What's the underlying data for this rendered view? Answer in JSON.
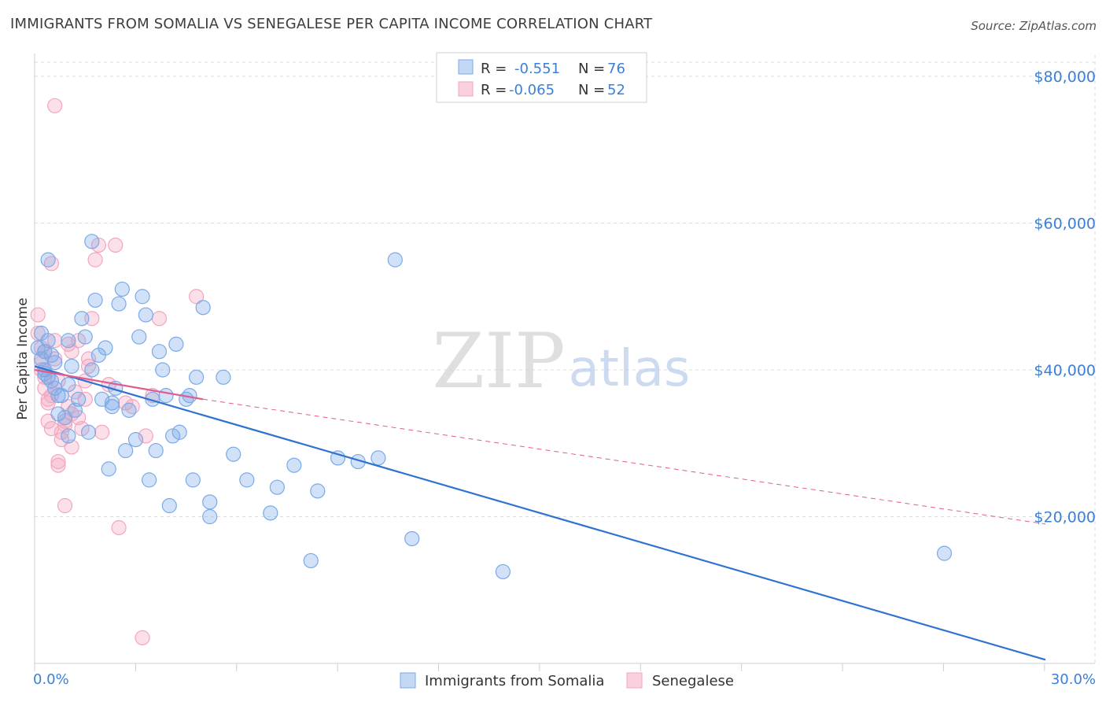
{
  "title": "IMMIGRANTS FROM SOMALIA VS SENEGALESE PER CAPITA INCOME CORRELATION CHART",
  "source": "Source: ZipAtlas.com",
  "watermark": {
    "zip": "ZIP",
    "atlas": "atlas"
  },
  "colors": {
    "blue": "#7aaae8",
    "blue_line": "#2f73d0",
    "pink": "#f3a6bf",
    "pink_line": "#e05c8f",
    "axis_text_blue": "#3d7fd6",
    "grid": "#dcdcdc"
  },
  "legend": {
    "rows": [
      {
        "r_label": "R =",
        "r_value": "-0.551",
        "n_label": "N =",
        "n_value": "76"
      },
      {
        "r_label": "R =",
        "r_value": "-0.065",
        "n_label": "N =",
        "n_value": "52"
      }
    ]
  },
  "chart_data": {
    "type": "scatter",
    "title": "IMMIGRANTS FROM SOMALIA VS SENEGALESE PER CAPITA INCOME CORRELATION CHART",
    "xlabel": "",
    "ylabel": "Per Capita Income",
    "xlim": [
      0,
      30
    ],
    "ylim": [
      0,
      82000
    ],
    "x_tick_labels": [
      "0.0%",
      "30.0%"
    ],
    "y_ticks": [
      20000,
      40000,
      60000,
      80000
    ],
    "y_tick_labels": [
      "$20,000",
      "$40,000",
      "$60,000",
      "$80,000"
    ],
    "grid": true,
    "legend_position": "top-center",
    "series": [
      {
        "name": "Immigrants from Somalia",
        "R": -0.551,
        "N": 76,
        "trend": {
          "x": [
            0,
            30
          ],
          "y": [
            40500,
            500
          ],
          "style": "solid"
        },
        "points": [
          [
            0.1,
            43000
          ],
          [
            0.2,
            41500
          ],
          [
            0.3,
            42500
          ],
          [
            0.3,
            40000
          ],
          [
            0.4,
            39000
          ],
          [
            0.4,
            44000
          ],
          [
            0.5,
            38500
          ],
          [
            0.5,
            42000
          ],
          [
            0.6,
            41000
          ],
          [
            0.6,
            37500
          ],
          [
            0.7,
            34000
          ],
          [
            0.8,
            36500
          ],
          [
            0.9,
            33500
          ],
          [
            1.0,
            44000
          ],
          [
            1.0,
            31000
          ],
          [
            1.1,
            40500
          ],
          [
            1.2,
            34500
          ],
          [
            1.3,
            36000
          ],
          [
            1.4,
            47000
          ],
          [
            1.5,
            44500
          ],
          [
            1.6,
            31500
          ],
          [
            1.7,
            40000
          ],
          [
            1.8,
            49500
          ],
          [
            1.9,
            42000
          ],
          [
            2.0,
            36000
          ],
          [
            2.1,
            43000
          ],
          [
            2.2,
            26500
          ],
          [
            2.3,
            35500
          ],
          [
            2.4,
            37500
          ],
          [
            2.5,
            49000
          ],
          [
            2.6,
            51000
          ],
          [
            2.7,
            29000
          ],
          [
            2.8,
            34500
          ],
          [
            3.0,
            30500
          ],
          [
            3.1,
            44500
          ],
          [
            3.2,
            50000
          ],
          [
            3.3,
            47500
          ],
          [
            3.4,
            25000
          ],
          [
            3.5,
            36000
          ],
          [
            3.6,
            29000
          ],
          [
            3.7,
            42500
          ],
          [
            3.9,
            36500
          ],
          [
            4.0,
            21500
          ],
          [
            4.1,
            31000
          ],
          [
            4.2,
            43500
          ],
          [
            4.3,
            31500
          ],
          [
            4.5,
            36000
          ],
          [
            4.6,
            36500
          ],
          [
            4.7,
            25000
          ],
          [
            4.8,
            39000
          ],
          [
            5.0,
            48500
          ],
          [
            5.2,
            22000
          ],
          [
            5.2,
            20000
          ],
          [
            5.6,
            39000
          ],
          [
            5.9,
            28500
          ],
          [
            6.3,
            25000
          ],
          [
            7.0,
            20500
          ],
          [
            7.2,
            24000
          ],
          [
            7.7,
            27000
          ],
          [
            8.2,
            14000
          ],
          [
            8.4,
            23500
          ],
          [
            9.0,
            28000
          ],
          [
            9.6,
            27500
          ],
          [
            10.2,
            28000
          ],
          [
            10.7,
            55000
          ],
          [
            11.2,
            17000
          ],
          [
            13.9,
            12500
          ],
          [
            27.0,
            15000
          ],
          [
            0.2,
            45000
          ],
          [
            0.3,
            39500
          ],
          [
            1.0,
            38000
          ],
          [
            1.7,
            57500
          ],
          [
            0.4,
            55000
          ],
          [
            2.3,
            35000
          ],
          [
            3.8,
            40000
          ],
          [
            0.7,
            36500
          ]
        ]
      },
      {
        "name": "Senegalese",
        "R": -0.065,
        "N": 52,
        "trend": {
          "x": [
            0,
            5
          ],
          "y": [
            40000,
            36000
          ],
          "style": "solid",
          "extended": {
            "x": [
              5,
              30
            ],
            "y": [
              36000,
              19000
            ],
            "style": "dashed"
          }
        },
        "points": [
          [
            0.1,
            47500
          ],
          [
            0.1,
            45000
          ],
          [
            0.2,
            43000
          ],
          [
            0.2,
            41000
          ],
          [
            0.3,
            42500
          ],
          [
            0.3,
            39000
          ],
          [
            0.3,
            37500
          ],
          [
            0.4,
            35500
          ],
          [
            0.4,
            33000
          ],
          [
            0.5,
            54500
          ],
          [
            0.5,
            36500
          ],
          [
            0.5,
            32000
          ],
          [
            0.6,
            76000
          ],
          [
            0.6,
            41500
          ],
          [
            0.7,
            38500
          ],
          [
            0.7,
            27500
          ],
          [
            0.7,
            27000
          ],
          [
            0.8,
            31500
          ],
          [
            0.9,
            21500
          ],
          [
            0.9,
            33000
          ],
          [
            1.0,
            43500
          ],
          [
            1.0,
            35000
          ],
          [
            1.1,
            42500
          ],
          [
            1.1,
            29500
          ],
          [
            1.2,
            37000
          ],
          [
            1.3,
            44000
          ],
          [
            1.4,
            32000
          ],
          [
            1.5,
            38500
          ],
          [
            1.5,
            36000
          ],
          [
            1.6,
            41500
          ],
          [
            1.7,
            47000
          ],
          [
            1.8,
            55000
          ],
          [
            1.9,
            57000
          ],
          [
            2.0,
            31500
          ],
          [
            2.2,
            38000
          ],
          [
            2.4,
            57000
          ],
          [
            2.5,
            18500
          ],
          [
            2.7,
            35500
          ],
          [
            3.2,
            3500
          ],
          [
            3.3,
            31000
          ],
          [
            3.5,
            36500
          ],
          [
            3.7,
            47000
          ],
          [
            4.8,
            50000
          ],
          [
            0.9,
            32500
          ],
          [
            1.3,
            33500
          ],
          [
            1.6,
            40500
          ],
          [
            0.2,
            40000
          ],
          [
            0.4,
            36000
          ],
          [
            1.1,
            34000
          ],
          [
            0.6,
            44000
          ],
          [
            2.9,
            35000
          ],
          [
            0.8,
            30500
          ]
        ]
      }
    ]
  }
}
